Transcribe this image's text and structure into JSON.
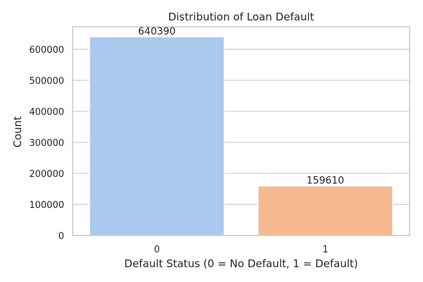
{
  "chart_data": {
    "type": "bar",
    "title": "Distribution of Loan Default",
    "xlabel": "Default Status (0 = No Default, 1 = Default)",
    "ylabel": "Count",
    "categories": [
      "0",
      "1"
    ],
    "values": [
      640390,
      159610
    ],
    "data_labels": [
      "640390",
      "159610"
    ],
    "colors": [
      "#a9c9ef",
      "#f5b98f"
    ],
    "y_ticks": [
      0,
      100000,
      200000,
      300000,
      400000,
      500000,
      600000
    ],
    "y_tick_labels": [
      "0",
      "100000",
      "200000",
      "300000",
      "400000",
      "500000",
      "600000"
    ],
    "ylim": [
      0,
      672410
    ],
    "grid": true,
    "legend": "none"
  }
}
